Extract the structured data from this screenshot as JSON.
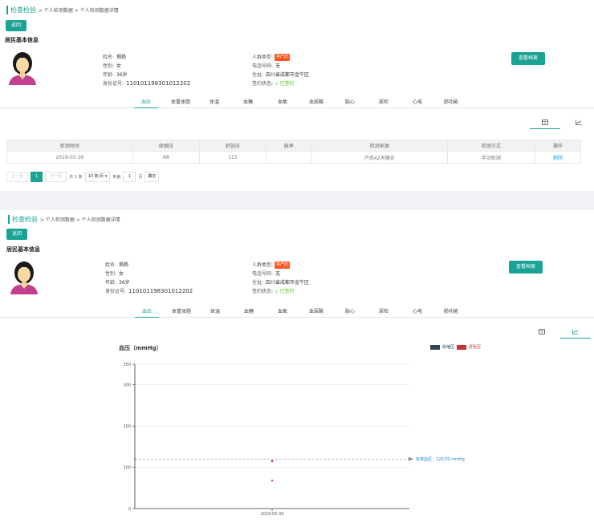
{
  "breadcrumb": {
    "main": "检查检验",
    "rest": "> 个人检测数据 > 个人检测数据详情"
  },
  "back_label": "返回",
  "section_title": "居民基本信息",
  "view_record_label": "查看档案",
  "resident": {
    "name_label": "姓名:",
    "name": "揭杨",
    "gender_label": "性别:",
    "gender": "女",
    "age_label": "年龄:",
    "age": "36岁",
    "id_label": "身份证号:",
    "id": "110101198301012202",
    "type_label": "人群类型:",
    "type": "孕产妇",
    "phone_label": "电话号码:",
    "phone": "无",
    "address_label": "住址:",
    "address": "四川省成都市金牛区",
    "sign_label": "签约状态:",
    "sign": "√ 已签约"
  },
  "tabs": [
    "血压",
    "体重体脂",
    "体温",
    "血糖",
    "血氧",
    "血尿酸",
    "胎心",
    "尿检",
    "心电",
    "肺功能"
  ],
  "active_tab": "血压",
  "view_toggle": {
    "table_icon": "table-icon",
    "chart_icon": "line-chart-icon"
  },
  "table": {
    "headers": [
      "检测时间",
      "收缩压",
      "舒张压",
      "脉率",
      "检测来源",
      "检测方式",
      "操作"
    ],
    "rows": [
      [
        "2019-05-30",
        "68",
        "115",
        "",
        "产后42天随访",
        "手动检测",
        "删除"
      ]
    ]
  },
  "pagination": {
    "prev": "上一页",
    "current": "1",
    "next": "下一页",
    "total": "共 1 条",
    "page_size": "10 条/页 ▾",
    "goto": "到第",
    "goto_value": "1",
    "page_unit": "页",
    "confirm": "确定"
  },
  "colors": {
    "accent": "#1aa394",
    "systolic": "#2f4554",
    "diastolic": "#c23531",
    "tag": "#ff5722",
    "signed": "#52c41a"
  },
  "chart_data": {
    "type": "line",
    "title": "血压（mmHg）",
    "x": [
      "2019-05-30"
    ],
    "series": [
      {
        "name": "收缩压",
        "values": [
          68
        ]
      },
      {
        "name": "舒张压",
        "values": [
          115
        ]
      }
    ],
    "ylim": [
      0,
      350
    ],
    "yticks": [
      0,
      100,
      200,
      300,
      350
    ],
    "reference": {
      "value": 120,
      "label": "标准血压：120/70 mmHg"
    },
    "legend_position": "top-right",
    "grid": true
  }
}
